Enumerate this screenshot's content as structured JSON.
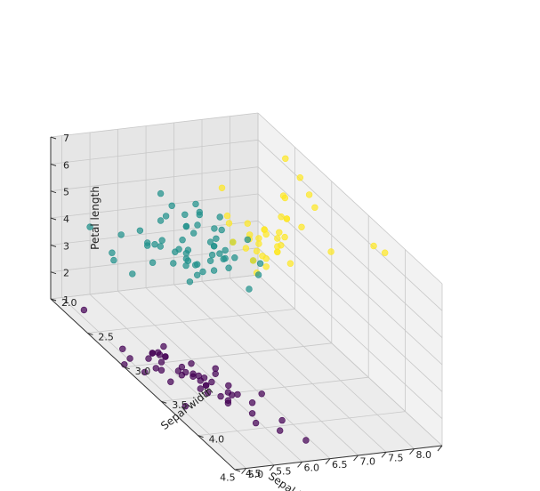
{
  "chart_data": {
    "type": "scatter",
    "projection": "3d",
    "title": "",
    "xlabel": "Sepal lenth",
    "ylabel": "Sepal width",
    "zlabel": "Petal length",
    "xlim": [
      4.3,
      8.0
    ],
    "ylim": [
      2.0,
      4.5
    ],
    "zlim": [
      1.0,
      7.0
    ],
    "xticks": [
      "4.5",
      "5.0",
      "5.5",
      "6.0",
      "6.5",
      "7.0",
      "7.5",
      "8.0"
    ],
    "yticks": [
      "2.0",
      "2.5",
      "3.0",
      "3.5",
      "4.0",
      "4.5"
    ],
    "zticks": [
      "1",
      "2",
      "3",
      "4",
      "5",
      "6",
      "7"
    ],
    "grid": true,
    "legend": "none",
    "colors": {
      "cluster_0": "#440154",
      "cluster_1": "#21918c",
      "cluster_2": "#fde725"
    },
    "series": [
      {
        "color_key": "cluster_0",
        "points": [
          [
            5.1,
            3.5,
            1.4
          ],
          [
            4.9,
            3.0,
            1.4
          ],
          [
            4.7,
            3.2,
            1.3
          ],
          [
            4.6,
            3.1,
            1.5
          ],
          [
            5.0,
            3.6,
            1.4
          ],
          [
            5.4,
            3.9,
            1.7
          ],
          [
            4.6,
            3.4,
            1.4
          ],
          [
            5.0,
            3.4,
            1.5
          ],
          [
            4.4,
            2.9,
            1.4
          ],
          [
            4.9,
            3.1,
            1.5
          ],
          [
            5.4,
            3.7,
            1.5
          ],
          [
            4.8,
            3.4,
            1.6
          ],
          [
            4.8,
            3.0,
            1.4
          ],
          [
            4.3,
            3.0,
            1.1
          ],
          [
            5.8,
            4.0,
            1.2
          ],
          [
            5.7,
            4.4,
            1.5
          ],
          [
            5.4,
            3.9,
            1.3
          ],
          [
            5.1,
            3.5,
            1.4
          ],
          [
            5.7,
            3.8,
            1.7
          ],
          [
            5.1,
            3.8,
            1.5
          ],
          [
            5.4,
            3.4,
            1.7
          ],
          [
            5.1,
            3.7,
            1.5
          ],
          [
            4.6,
            3.6,
            1.0
          ],
          [
            5.1,
            3.3,
            1.7
          ],
          [
            4.8,
            3.4,
            1.9
          ],
          [
            5.0,
            3.0,
            1.6
          ],
          [
            5.0,
            3.4,
            1.6
          ],
          [
            5.2,
            3.5,
            1.5
          ],
          [
            5.2,
            3.4,
            1.4
          ],
          [
            4.7,
            3.2,
            1.6
          ],
          [
            4.8,
            3.1,
            1.6
          ],
          [
            5.4,
            3.4,
            1.5
          ],
          [
            5.2,
            4.1,
            1.5
          ],
          [
            5.5,
            4.2,
            1.4
          ],
          [
            4.9,
            3.1,
            1.5
          ],
          [
            5.0,
            3.2,
            1.2
          ],
          [
            5.5,
            3.5,
            1.3
          ],
          [
            4.4,
            3.0,
            1.3
          ],
          [
            5.1,
            3.4,
            1.5
          ],
          [
            5.0,
            3.5,
            1.3
          ],
          [
            4.5,
            2.3,
            1.3
          ],
          [
            4.4,
            3.2,
            1.3
          ],
          [
            5.0,
            3.5,
            1.6
          ],
          [
            5.1,
            3.8,
            1.9
          ],
          [
            4.8,
            3.0,
            1.4
          ],
          [
            5.1,
            3.8,
            1.6
          ],
          [
            4.6,
            3.2,
            1.4
          ],
          [
            5.3,
            3.7,
            1.5
          ],
          [
            5.0,
            3.3,
            1.4
          ]
        ]
      },
      {
        "color_key": "cluster_1",
        "points": [
          [
            5.5,
            2.3,
            4.0
          ],
          [
            5.7,
            2.8,
            4.5
          ],
          [
            4.9,
            2.4,
            3.3
          ],
          [
            5.2,
            2.7,
            3.9
          ],
          [
            5.0,
            2.0,
            3.5
          ],
          [
            5.9,
            3.0,
            4.2
          ],
          [
            6.0,
            2.2,
            4.0
          ],
          [
            5.6,
            2.9,
            3.6
          ],
          [
            5.6,
            3.0,
            4.5
          ],
          [
            5.8,
            2.7,
            4.1
          ],
          [
            6.2,
            2.2,
            4.5
          ],
          [
            5.6,
            2.5,
            3.9
          ],
          [
            5.9,
            3.2,
            4.8
          ],
          [
            6.1,
            2.8,
            4.0
          ],
          [
            6.1,
            2.8,
            4.7
          ],
          [
            6.4,
            2.9,
            4.3
          ],
          [
            6.6,
            3.0,
            4.4
          ],
          [
            6.0,
            2.9,
            4.5
          ],
          [
            5.7,
            2.6,
            3.5
          ],
          [
            5.5,
            2.4,
            3.8
          ],
          [
            5.5,
            2.4,
            3.7
          ],
          [
            5.8,
            2.7,
            3.9
          ],
          [
            6.0,
            2.7,
            5.1
          ],
          [
            5.4,
            3.0,
            4.5
          ],
          [
            6.0,
            3.4,
            4.5
          ],
          [
            6.3,
            2.3,
            4.4
          ],
          [
            5.6,
            3.0,
            4.1
          ],
          [
            5.5,
            2.5,
            4.0
          ],
          [
            5.5,
            2.6,
            4.4
          ],
          [
            6.1,
            3.0,
            4.6
          ],
          [
            5.8,
            2.6,
            4.0
          ],
          [
            5.0,
            2.3,
            3.3
          ],
          [
            5.6,
            2.7,
            4.2
          ],
          [
            5.7,
            3.0,
            4.2
          ],
          [
            5.7,
            2.9,
            4.2
          ],
          [
            6.2,
            2.9,
            4.3
          ],
          [
            5.1,
            2.5,
            3.0
          ],
          [
            5.7,
            2.8,
            4.1
          ],
          [
            5.8,
            2.7,
            5.1
          ],
          [
            4.9,
            2.5,
            4.5
          ],
          [
            5.7,
            2.5,
            5.0
          ],
          [
            5.8,
            2.8,
            5.1
          ],
          [
            6.0,
            2.2,
            5.0
          ],
          [
            5.6,
            2.8,
            4.9
          ],
          [
            6.3,
            2.7,
            4.9
          ],
          [
            6.2,
            2.8,
            4.8
          ],
          [
            6.1,
            3.0,
            4.9
          ],
          [
            6.3,
            2.5,
            5.0
          ],
          [
            6.0,
            3.0,
            4.8
          ],
          [
            5.9,
            3.0,
            5.1
          ],
          [
            6.3,
            2.8,
            5.1
          ],
          [
            6.3,
            3.3,
            4.7
          ],
          [
            6.5,
            2.8,
            4.6
          ],
          [
            6.3,
            2.5,
            4.9
          ],
          [
            5.8,
            2.7,
            5.1
          ],
          [
            5.9,
            3.0,
            5.1
          ],
          [
            6.5,
            3.0,
            5.2
          ],
          [
            6.2,
            3.4,
            5.4
          ],
          [
            6.4,
            2.7,
            5.3
          ],
          [
            6.1,
            2.6,
            5.6
          ]
        ]
      },
      {
        "color_key": "cluster_2",
        "points": [
          [
            7.0,
            3.2,
            4.7
          ],
          [
            6.9,
            3.1,
            4.9
          ],
          [
            6.7,
            3.1,
            4.4
          ],
          [
            6.8,
            2.8,
            4.8
          ],
          [
            6.7,
            3.0,
            5.0
          ],
          [
            7.1,
            3.0,
            5.9
          ],
          [
            7.6,
            3.0,
            6.6
          ],
          [
            7.3,
            2.9,
            6.3
          ],
          [
            7.2,
            3.6,
            6.1
          ],
          [
            7.7,
            3.8,
            6.7
          ],
          [
            7.7,
            2.6,
            6.9
          ],
          [
            6.9,
            3.2,
            5.7
          ],
          [
            7.7,
            2.8,
            6.7
          ],
          [
            7.2,
            3.2,
            6.0
          ],
          [
            7.2,
            3.0,
            5.8
          ],
          [
            7.4,
            2.8,
            6.1
          ],
          [
            7.9,
            3.8,
            6.4
          ],
          [
            7.7,
            3.0,
            6.1
          ],
          [
            6.9,
            3.1,
            5.4
          ],
          [
            6.8,
            3.2,
            5.9
          ],
          [
            6.7,
            3.3,
            5.7
          ],
          [
            6.7,
            3.0,
            5.2
          ],
          [
            6.5,
            3.2,
            5.1
          ],
          [
            6.4,
            3.2,
            5.3
          ],
          [
            6.8,
            3.0,
            5.5
          ],
          [
            6.4,
            3.1,
            5.5
          ],
          [
            6.7,
            3.1,
            5.6
          ],
          [
            6.9,
            3.1,
            5.1
          ],
          [
            6.7,
            2.5,
            5.8
          ],
          [
            6.5,
            3.0,
            5.8
          ],
          [
            6.3,
            2.9,
            5.6
          ],
          [
            6.4,
            2.8,
            5.6
          ],
          [
            7.2,
            3.0,
            5.8
          ],
          [
            6.6,
            2.9,
            4.6
          ],
          [
            6.7,
            3.1,
            4.7
          ],
          [
            6.6,
            3.0,
            4.4
          ],
          [
            6.8,
            3.0,
            5.5
          ],
          [
            6.4,
            3.2,
            4.5
          ],
          [
            6.5,
            2.8,
            4.6
          ],
          [
            6.9,
            3.1,
            4.9
          ]
        ]
      }
    ]
  }
}
